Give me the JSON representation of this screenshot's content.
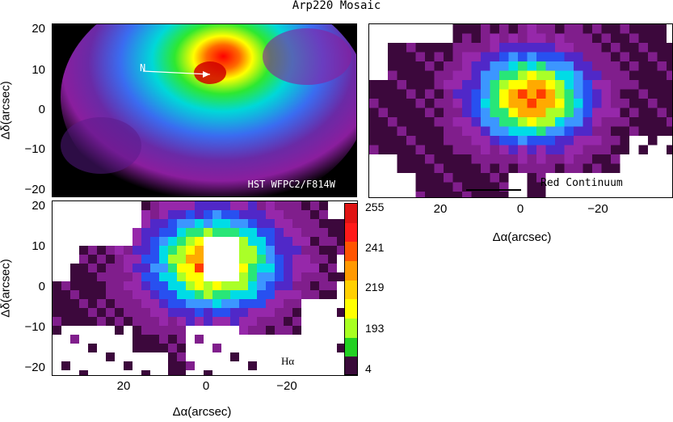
{
  "title": "Arp220 Mosaic",
  "panels": {
    "hst": {
      "label": "HST WFPC2/F814W",
      "north_label": "N",
      "y_axis_label": "Δδ(arcsec)",
      "y_ticks": [
        "20",
        "10",
        "0",
        "−10",
        "−20"
      ]
    },
    "continuum": {
      "label": "Red Continuum",
      "x_axis_label": "Δα(arcsec)",
      "x_ticks": [
        "20",
        "0",
        "−20"
      ]
    },
    "halpha": {
      "label": "Hα",
      "x_axis_label": "Δα(arcsec)",
      "y_axis_label": "Δδ(arcsec)",
      "x_ticks": [
        "20",
        "0",
        "−20"
      ],
      "y_ticks": [
        "20",
        "10",
        "0",
        "−10",
        "−20"
      ]
    }
  },
  "colorbar": {
    "labels": [
      "255",
      "241",
      "219",
      "193",
      "4"
    ],
    "colors": [
      "#3a0a3a",
      "#22d022",
      "#a8ff22",
      "#ffff00",
      "#ffd000",
      "#ff9900",
      "#ff5500",
      "#ff1a1a",
      "#e01414"
    ]
  }
}
